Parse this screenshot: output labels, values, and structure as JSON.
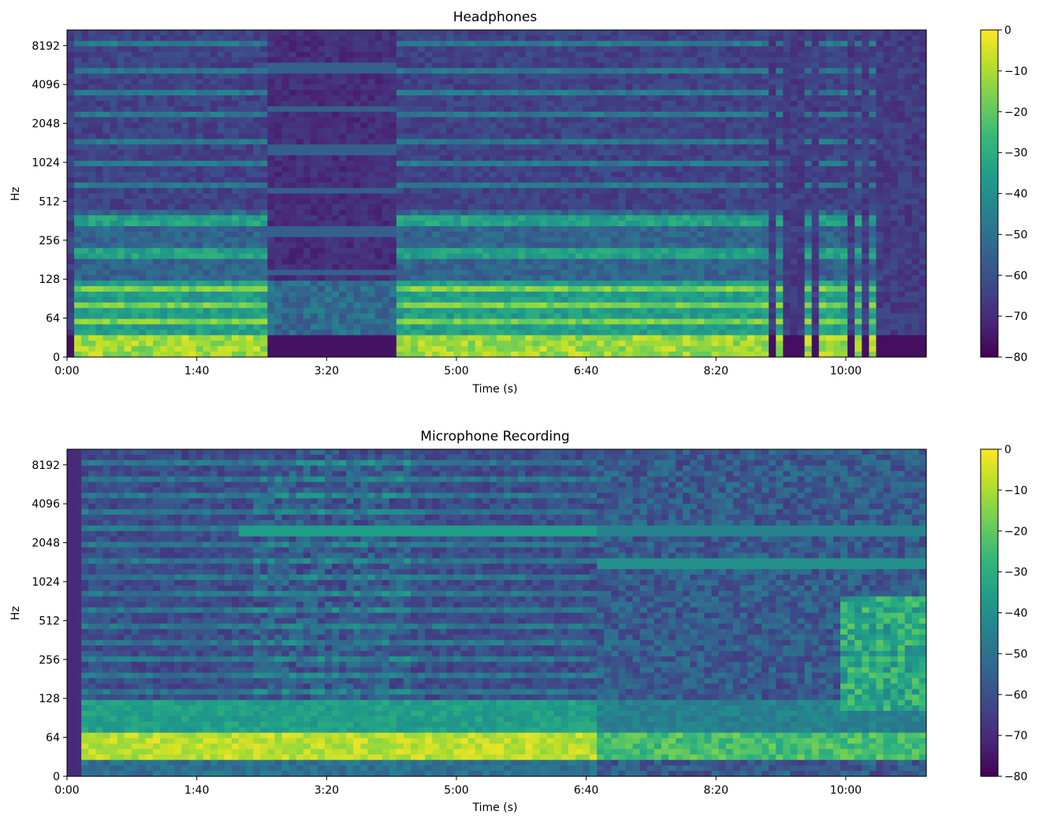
{
  "chart_data": [
    {
      "type": "heatmap",
      "title": "Headphones",
      "xlabel": "Time (s)",
      "ylabel": "Hz",
      "x_ticks": [
        "0:00",
        "1:40",
        "3:20",
        "5:00",
        "6:40",
        "8:20",
        "10:00"
      ],
      "x_tick_seconds": [
        0,
        100,
        200,
        300,
        400,
        500,
        600
      ],
      "xlim_seconds": [
        0,
        662
      ],
      "y_scale": "symlog (base 2)",
      "y_ticks": [
        "0",
        "64",
        "128",
        "256",
        "512",
        "1024",
        "2048",
        "4096",
        "8192"
      ],
      "y_tick_hz": [
        0,
        64,
        128,
        256,
        512,
        1024,
        2048,
        4096,
        8192
      ],
      "ylim_hz": [
        0,
        11025
      ],
      "colorbar": {
        "label": "",
        "ticks": [
          "0",
          "−10",
          "−20",
          "−30",
          "−40",
          "−50",
          "−60",
          "−70",
          "−80"
        ],
        "range_db": [
          -80,
          0
        ],
        "colormap": "viridis"
      },
      "description_segments": [
        {
          "start_s": 5,
          "end_s": 152,
          "level": "loud"
        },
        {
          "start_s": 152,
          "end_s": 255,
          "level": "quiet"
        },
        {
          "start_s": 255,
          "end_s": 540,
          "level": "loud"
        },
        {
          "start_s": 540,
          "end_s": 650,
          "level": "intermittent"
        }
      ]
    },
    {
      "type": "heatmap",
      "title": "Microphone Recording",
      "xlabel": "Time (s)",
      "ylabel": "Hz",
      "x_ticks": [
        "0:00",
        "1:40",
        "3:20",
        "5:00",
        "6:40",
        "8:20",
        "10:00"
      ],
      "x_tick_seconds": [
        0,
        100,
        200,
        300,
        400,
        500,
        600
      ],
      "xlim_seconds": [
        0,
        662
      ],
      "y_scale": "symlog (base 2)",
      "y_ticks": [
        "0",
        "64",
        "128",
        "256",
        "512",
        "1024",
        "2048",
        "4096",
        "8192"
      ],
      "y_tick_hz": [
        0,
        64,
        128,
        256,
        512,
        1024,
        2048,
        4096,
        8192
      ],
      "ylim_hz": [
        0,
        11025
      ],
      "colorbar": {
        "label": "",
        "ticks": [
          "0",
          "−10",
          "−20",
          "−30",
          "−40",
          "−50",
          "−60",
          "−70",
          "−80"
        ],
        "range_db": [
          -80,
          0
        ],
        "colormap": "viridis"
      },
      "description_segments": [
        {
          "start_s": 5,
          "end_s": 425,
          "level": "loud"
        },
        {
          "start_s": 425,
          "end_s": 660,
          "level": "broadband"
        }
      ]
    }
  ],
  "colors": {
    "viridis": [
      "#440154",
      "#482878",
      "#3e4989",
      "#31688e",
      "#26828e",
      "#1f9e89",
      "#35b779",
      "#6ece58",
      "#b5de2b",
      "#fde725"
    ]
  }
}
